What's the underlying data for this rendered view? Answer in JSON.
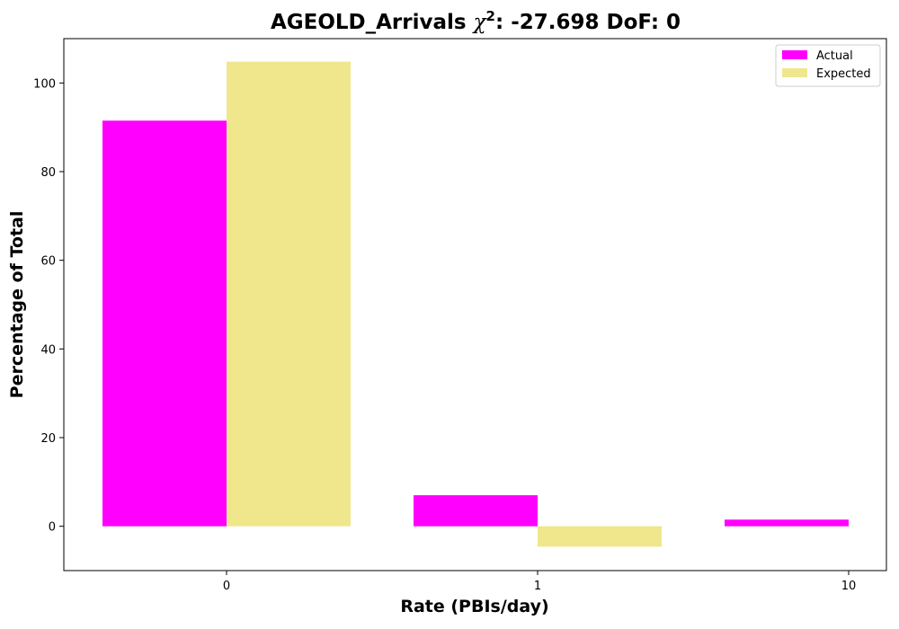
{
  "chart_data": {
    "type": "bar",
    "title_prefix": "AGEOLD_Arrivals",
    "title_chi": "χ",
    "title_sup": "2",
    "title_suffix": ": -27.698 DoF: 0",
    "xlabel": "Rate (PBIs/day)",
    "ylabel": "Percentage of Total",
    "categories": [
      "0",
      "1",
      "10"
    ],
    "series": [
      {
        "name": "Actual",
        "color": "#ff00ff",
        "values": [
          91.5,
          7.0,
          1.5
        ]
      },
      {
        "name": "Expected",
        "color": "#f0e68c",
        "values": [
          104.8,
          -4.6,
          0
        ]
      }
    ],
    "ylim": [
      -10,
      110
    ],
    "yticks": [
      0,
      20,
      40,
      60,
      80,
      100
    ],
    "legend": "top-right",
    "grid": false
  }
}
